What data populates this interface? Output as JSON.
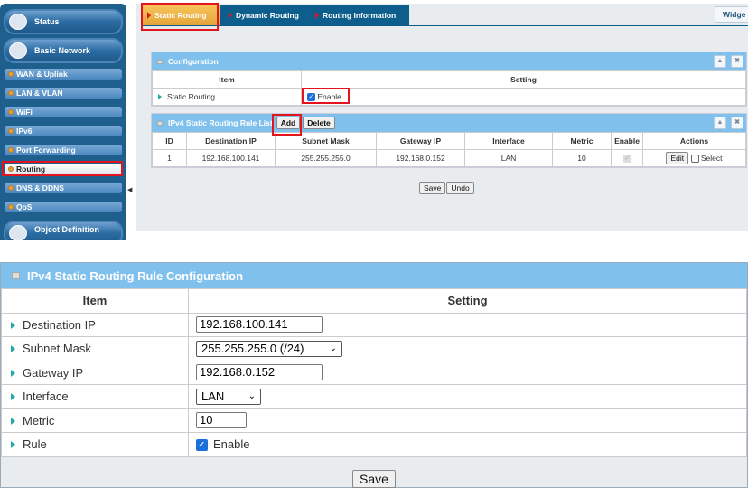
{
  "sidebar": {
    "sections": [
      {
        "label": "Status",
        "icon": "status-chart-icon"
      },
      {
        "label": "Basic Network",
        "icon": "globe-icon"
      }
    ],
    "items": [
      {
        "label": "WAN & Uplink"
      },
      {
        "label": "LAN & VLAN"
      },
      {
        "label": "WiFi"
      },
      {
        "label": "IPv6"
      },
      {
        "label": "Port Forwarding"
      },
      {
        "label": "Routing",
        "active": true
      },
      {
        "label": "DNS & DDNS"
      },
      {
        "label": "QoS"
      }
    ],
    "next_section": "Object Definition"
  },
  "tabs": [
    {
      "label": "Static Routing",
      "active": true
    },
    {
      "label": "Dynamic Routing"
    },
    {
      "label": "Routing Information"
    }
  ],
  "widget_button": "Widge",
  "configuration": {
    "title": "Configuration",
    "col_item": "Item",
    "col_setting": "Setting",
    "row_label": "Static Routing",
    "enable_label": "Enable",
    "enabled": true
  },
  "rule_list": {
    "title": "IPv4 Static Routing Rule List",
    "add": "Add",
    "delete": "Delete",
    "columns": [
      "ID",
      "Destination IP",
      "Subnet Mask",
      "Gateway IP",
      "Interface",
      "Metric",
      "Enable",
      "Actions"
    ],
    "rows": [
      {
        "id": "1",
        "dest": "192.168.100.141",
        "mask": "255.255.255.0",
        "gateway": "192.168.0.152",
        "iface": "LAN",
        "metric": "10",
        "enabled": true,
        "edit": "Edit",
        "select": "Select"
      }
    ]
  },
  "save": "Save",
  "undo": "Undo",
  "rule_config": {
    "title": "IPv4 Static Routing Rule Configuration",
    "col_item": "Item",
    "col_setting": "Setting",
    "dest_label": "Destination IP",
    "dest_value": "192.168.100.141",
    "mask_label": "Subnet Mask",
    "mask_value": "255.255.255.0 (/24)",
    "gw_label": "Gateway IP",
    "gw_value": "192.168.0.152",
    "iface_label": "Interface",
    "iface_value": "LAN",
    "metric_label": "Metric",
    "metric_value": "10",
    "rule_label": "Rule",
    "rule_enable": "Enable",
    "rule_enabled": true,
    "save": "Save"
  },
  "colors": {
    "sidebar": "#1e5f8e",
    "panel_header": "#7fc0ec",
    "active_tab": "#e4a43a",
    "highlight": "#e3141e"
  }
}
